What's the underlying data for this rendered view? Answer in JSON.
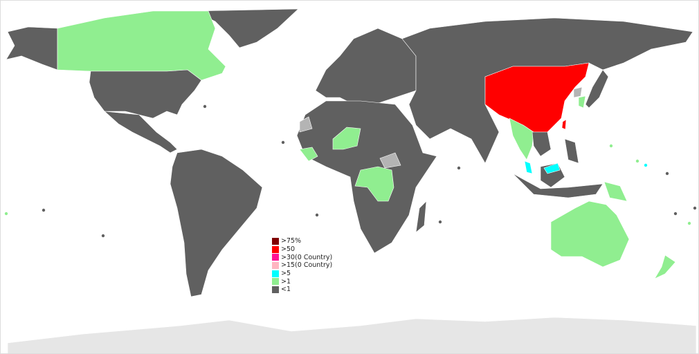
{
  "colors": {
    "gt75": "#800000",
    "gt50": "#ff0000",
    "gt30": "#ff1493",
    "gt15": "#ffb6c1",
    "gt5": "#00ffff",
    "gt1": "#90ee90",
    "lt1": "#606060",
    "no_data": "#b4b4b4",
    "antarctica": "#e6e6e6",
    "border": "#ffffff"
  },
  "legend": {
    "items": [
      {
        "label": ">75%",
        "color": "#800000"
      },
      {
        "label": ">50",
        "color": "#ff0000"
      },
      {
        "label": ">30(0 Country)",
        "color": "#ff1493"
      },
      {
        "label": ">15(0 Country)",
        "color": "#ffb6c1"
      },
      {
        "label": ">5",
        "color": "#00ffff"
      },
      {
        "label": ">1",
        "color": "#90ee90"
      },
      {
        "label": "<1",
        "color": "#606060"
      }
    ]
  },
  "categories": {
    "gt50": [
      "China",
      "Taiwan"
    ],
    "gt5": [
      "Malaysia",
      "Brunei"
    ],
    "gt1": [
      "Canada",
      "Australia",
      "New Zealand",
      "Niger",
      "DR Congo",
      "Myanmar",
      "Thailand",
      "Papua New Guinea",
      "Guinea",
      "South Korea"
    ]
  }
}
